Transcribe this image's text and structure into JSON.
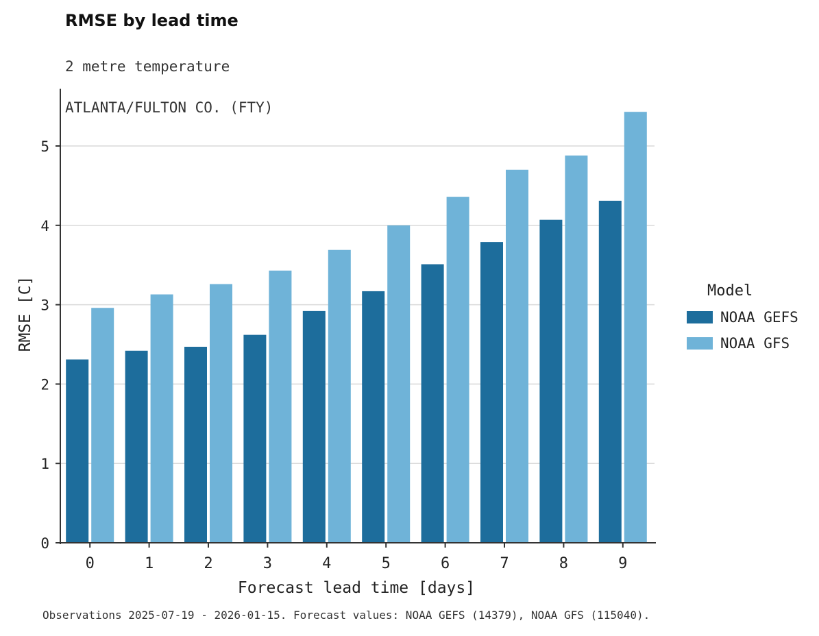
{
  "title": "RMSE by lead time",
  "subtitle_line1": "2 metre temperature",
  "subtitle_line2": "ATLANTA/FULTON CO. (FTY)",
  "footer": "Observations 2025-07-19 - 2026-01-15. Forecast values: NOAA GEFS (14379), NOAA GFS (115040).",
  "legend": {
    "title": "Model",
    "items": [
      {
        "label": "NOAA GEFS",
        "color": "#1d6d9c"
      },
      {
        "label": "NOAA GFS",
        "color": "#6fb3d8"
      }
    ]
  },
  "chart_data": {
    "type": "bar",
    "title": "RMSE by lead time",
    "subtitle": "2 metre temperature — ATLANTA/FULTON CO. (FTY)",
    "xlabel": "Forecast lead time [days]",
    "ylabel": "RMSE [C]",
    "categories": [
      "0",
      "1",
      "2",
      "3",
      "4",
      "5",
      "6",
      "7",
      "8",
      "9"
    ],
    "series": [
      {
        "name": "NOAA GEFS",
        "color": "#1d6d9c",
        "values": [
          2.31,
          2.42,
          2.47,
          2.62,
          2.92,
          3.17,
          3.51,
          3.79,
          4.07,
          4.31
        ]
      },
      {
        "name": "NOAA GFS",
        "color": "#6fb3d8",
        "values": [
          2.96,
          3.13,
          3.26,
          3.43,
          3.69,
          4.0,
          4.36,
          4.7,
          4.88,
          5.43
        ]
      }
    ],
    "ylim": [
      0,
      5.72
    ],
    "yticks": [
      0,
      1,
      2,
      3,
      4,
      5
    ],
    "grid": true,
    "grid_color": "#d9d9d9",
    "axis_color": "#333333",
    "legend_position": "right",
    "legend_title": "Model"
  }
}
